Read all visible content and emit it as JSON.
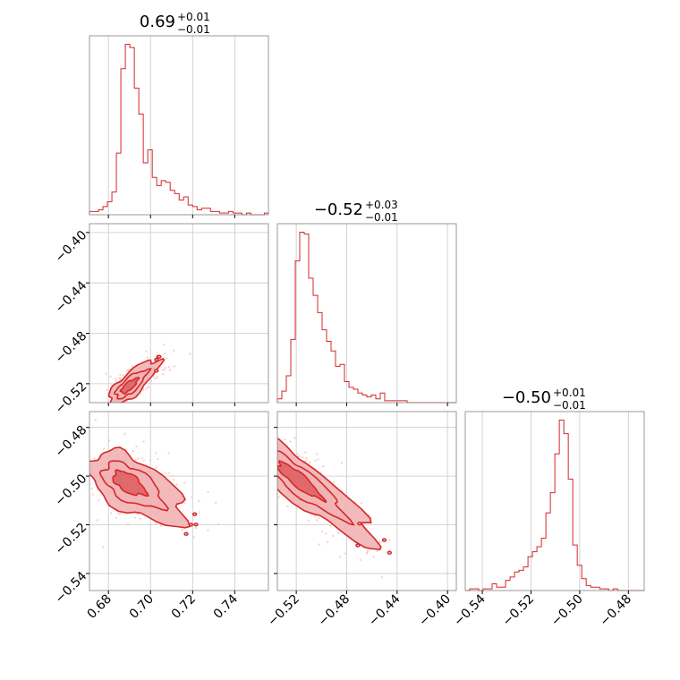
{
  "colors": {
    "line": "#d62728",
    "fill_inner": "#e06a6b",
    "fill_mid": "#f1b3b4",
    "scatter": "#f3c9ca",
    "grid": "#c8c8c8",
    "frame": "#808080"
  },
  "chart_data": {
    "type": "corner",
    "grid": true,
    "parameters": [
      {
        "id": "p0",
        "title": {
          "median": "0.69",
          "plus": "+0.01",
          "minus": "−0.01"
        },
        "range": [
          0.671,
          0.756
        ],
        "ticks": [
          0.68,
          0.7,
          0.72,
          0.74
        ],
        "tick_labels": [
          "0.68",
          "0.70",
          "0.72",
          "0.74"
        ],
        "histogram": {
          "bin_edges_start": 0.671,
          "bin_width": 0.00213,
          "counts": [
            2,
            2,
            3,
            5,
            8,
            14,
            38,
            90,
            105,
            103,
            78,
            62,
            32,
            40,
            23,
            18,
            21,
            20,
            15,
            13,
            9,
            11,
            6,
            5,
            3,
            4,
            4,
            2,
            2,
            1,
            1,
            2,
            1,
            1,
            0,
            1,
            0,
            0,
            0,
            1
          ]
        }
      },
      {
        "id": "p1",
        "title": {
          "median": "−0.52",
          "plus": "+0.03",
          "minus": "−0.01"
        },
        "range": [
          -0.535,
          -0.393
        ],
        "ticks": [
          -0.52,
          -0.48,
          -0.44,
          -0.4
        ],
        "tick_labels": [
          "−0.52",
          "−0.48",
          "−0.44",
          "−0.40"
        ],
        "histogram": {
          "bin_edges_start": -0.535,
          "bin_width": 0.00355,
          "counts": [
            2,
            6,
            14,
            33,
            74,
            89,
            88,
            65,
            56,
            47,
            38,
            32,
            27,
            19,
            20,
            11,
            8,
            7,
            5,
            4,
            3,
            4,
            2,
            5,
            1,
            1,
            1,
            1,
            1,
            0,
            0,
            0,
            0,
            0,
            0,
            0,
            0,
            0,
            0,
            0
          ]
        }
      },
      {
        "id": "p2",
        "title": {
          "median": "−0.50",
          "plus": "+0.01",
          "minus": "−0.01"
        },
        "range": [
          -0.547,
          -0.4735
        ],
        "ticks": [
          -0.54,
          -0.52,
          -0.5,
          -0.48
        ],
        "tick_labels": [
          "−0.54",
          "−0.52",
          "−0.50",
          "−0.48"
        ],
        "histogram": {
          "bin_edges_start": -0.547,
          "bin_width": 0.00184,
          "counts": [
            0,
            1,
            1,
            0,
            1,
            1,
            4,
            2,
            2,
            6,
            8,
            11,
            12,
            14,
            20,
            23,
            26,
            31,
            46,
            58,
            81,
            101,
            93,
            66,
            27,
            15,
            7,
            3,
            2,
            2,
            1,
            1,
            0,
            1,
            0,
            0,
            0,
            0,
            0,
            0
          ]
        }
      }
    ],
    "pairs": [
      {
        "x": "p0",
        "y": "p1",
        "center": [
          0.689,
          -0.523
        ],
        "slope": 1.45,
        "sd_along": 0.008,
        "sd_perp": 0.0024,
        "y_range": [
          -0.535,
          -0.393
        ],
        "y_ticks": [
          -0.52,
          -0.48,
          -0.44,
          -0.4
        ],
        "y_tick_labels": [
          "−0.52",
          "−0.48",
          "−0.44",
          "−0.40"
        ]
      },
      {
        "x": "p0",
        "y": "p2",
        "center": [
          0.688,
          -0.502
        ],
        "slope": -0.55,
        "sd_along": 0.01,
        "sd_perp": 0.0045,
        "y_range": [
          -0.547,
          -0.4735
        ],
        "y_ticks": [
          -0.54,
          -0.52,
          -0.5,
          -0.48
        ],
        "y_tick_labels": [
          "−0.54",
          "−0.52",
          "−0.50",
          "−0.48"
        ]
      },
      {
        "x": "p1",
        "y": "p2",
        "center": [
          -0.522,
          -0.5
        ],
        "slope": -0.42,
        "sd_along": 0.022,
        "sd_perp": 0.0035,
        "y_range": [
          -0.547,
          -0.4735
        ],
        "y_ticks": [
          -0.54,
          -0.52,
          -0.5,
          -0.48
        ],
        "y_tick_labels": [
          "−0.54",
          "−0.52",
          "−0.50",
          "−0.48"
        ]
      }
    ]
  }
}
